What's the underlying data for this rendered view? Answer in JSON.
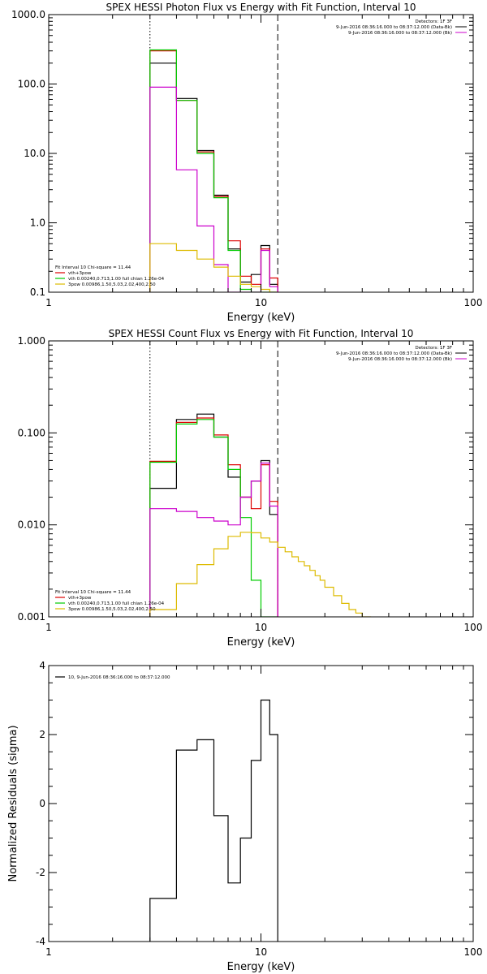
{
  "page": {
    "background": "#ffffff"
  },
  "chart_data": [
    {
      "type": "line",
      "title": "SPEX HESSI Photon Flux vs Energy with Fit Function, Interval 10",
      "xlabel": "Energy (keV)",
      "ylabel": "",
      "xscale": "log",
      "yscale": "log",
      "xlim": [
        1,
        100
      ],
      "ylim": [
        0.1,
        1000
      ],
      "xticks": [
        {
          "v": 1,
          "label": "1"
        },
        {
          "v": 10,
          "label": "10"
        },
        {
          "v": 100,
          "label": "100"
        }
      ],
      "yticks": [
        {
          "v": 0.1,
          "label": "0.1"
        },
        {
          "v": 1,
          "label": "1.0"
        },
        {
          "v": 10,
          "label": "10.0"
        },
        {
          "v": 100,
          "label": "100.0"
        },
        {
          "v": 1000,
          "label": "1000.0"
        }
      ],
      "vlines": [
        {
          "x": 3.0,
          "style": "dotted"
        },
        {
          "x": 12.0,
          "style": "dashed"
        }
      ],
      "header": [
        "Detectors: 1F 3F",
        "9-Jun-2016 08:36:16.000 to 08:37:12.000 (Data-Bk)",
        "9-Jun-2016 08:36:16.000 to 08:37:12.000 (Bk)"
      ],
      "header_colors": [
        "#000000",
        "#000000",
        "#cc00cc"
      ],
      "legend_lines": [
        "Fit Interval 10   Chi-square = 11.44",
        "vth+3pow",
        "vth 0.00240,0.713,1.00  full chian 1.26e-04",
        "3pow 0.00986,1.50,5.03,2.02,400,2.50"
      ],
      "legend_colors": [
        "",
        "#dd0000",
        "#00cc00",
        "#ddbb00"
      ],
      "series": [
        {
          "color": "#000000",
          "edges": [
            3.0,
            4.0,
            5.0,
            6.0,
            7.0,
            8.0,
            9.0,
            10.0,
            11.0,
            12.0
          ],
          "values": [
            200,
            62,
            11,
            2.5,
            0.42,
            0.14,
            0.18,
            0.47,
            0.13
          ]
        },
        {
          "color": "#dd0000",
          "edges": [
            3.0,
            4.0,
            5.0,
            6.0,
            7.0,
            8.0,
            9.0,
            10.0,
            11.0,
            12.0
          ],
          "values": [
            300,
            58,
            10.5,
            2.4,
            0.55,
            0.17,
            0.13,
            0.42,
            0.16
          ]
        },
        {
          "color": "#00cc00",
          "edges": [
            3.0,
            4.0,
            5.0,
            6.0,
            7.0,
            8.0,
            9.0,
            10.0,
            11.0,
            12.0
          ],
          "values": [
            310,
            58,
            10.0,
            2.3,
            0.4,
            0.11,
            0.1,
            0.1,
            0.1
          ]
        },
        {
          "color": "#cc00cc",
          "edges": [
            3.0,
            4.0,
            5.0,
            6.0,
            7.0,
            8.0,
            9.0,
            10.0,
            11.0,
            12.0
          ],
          "values": [
            90,
            5.8,
            0.9,
            0.25,
            0.1,
            0.1,
            0.1,
            0.4,
            0.12
          ]
        },
        {
          "color": "#ddbb00",
          "edges": [
            3.0,
            4.0,
            5.0,
            6.0,
            7.0,
            8.0,
            9.0,
            10.0,
            11.0,
            12.0
          ],
          "values": [
            0.5,
            0.4,
            0.3,
            0.23,
            0.17,
            0.13,
            0.12,
            0.11,
            0.1
          ]
        }
      ]
    },
    {
      "type": "line",
      "title": "SPEX HESSI Count Flux vs Energy with Fit Function, Interval 10",
      "xlabel": "Energy (keV)",
      "ylabel": "",
      "xscale": "log",
      "yscale": "log",
      "xlim": [
        1,
        100
      ],
      "ylim": [
        0.001,
        1
      ],
      "xticks": [
        {
          "v": 1,
          "label": "1"
        },
        {
          "v": 10,
          "label": "10"
        },
        {
          "v": 100,
          "label": "100"
        }
      ],
      "yticks": [
        {
          "v": 0.001,
          "label": "0.001"
        },
        {
          "v": 0.01,
          "label": "0.010"
        },
        {
          "v": 0.1,
          "label": "0.100"
        },
        {
          "v": 1,
          "label": "1.000"
        }
      ],
      "vlines": [
        {
          "x": 3.0,
          "style": "dotted"
        },
        {
          "x": 12.0,
          "style": "dashed"
        }
      ],
      "header": [
        "Detectors: 1F 3F",
        "9-Jun-2016 08:36:16.000 to 08:37:12.000 (Data-Bk)",
        "9-Jun-2016 08:36:16.000 to 08:37:12.000 (Bk)"
      ],
      "header_colors": [
        "#000000",
        "#000000",
        "#cc00cc"
      ],
      "legend_lines": [
        "Fit Interval 10   Chi-square = 11.44",
        "vth+3pow",
        "vth 0.00240,0.713,1.00  full chian 1.26e-04",
        "3pow 0.00986,1.50,5.03,2.02,400,2.50"
      ],
      "legend_colors": [
        "",
        "#dd0000",
        "#00cc00",
        "#ddbb00"
      ],
      "series": [
        {
          "color": "#000000",
          "edges": [
            3.0,
            4.0,
            5.0,
            6.0,
            7.0,
            8.0,
            9.0,
            10.0,
            11.0,
            12.0
          ],
          "values": [
            0.025,
            0.14,
            0.16,
            0.09,
            0.033,
            0.02,
            0.03,
            0.05,
            0.013
          ]
        },
        {
          "color": "#dd0000",
          "edges": [
            3.0,
            4.0,
            5.0,
            6.0,
            7.0,
            8.0,
            9.0,
            10.0,
            11.0,
            12.0
          ],
          "values": [
            0.049,
            0.13,
            0.145,
            0.095,
            0.045,
            0.02,
            0.015,
            0.045,
            0.018
          ]
        },
        {
          "color": "#00cc00",
          "edges": [
            3.0,
            4.0,
            5.0,
            6.0,
            7.0,
            8.0,
            9.0,
            10.0,
            11.0,
            12.0
          ],
          "values": [
            0.048,
            0.125,
            0.14,
            0.09,
            0.04,
            0.012,
            0.0025,
            0.001,
            0.001
          ]
        },
        {
          "color": "#cc00cc",
          "edges": [
            3.0,
            4.0,
            5.0,
            6.0,
            7.0,
            8.0,
            9.0,
            10.0,
            11.0,
            12.0
          ],
          "values": [
            0.015,
            0.014,
            0.012,
            0.011,
            0.01,
            0.02,
            0.03,
            0.047,
            0.016
          ]
        },
        {
          "color": "#ddbb00",
          "edges": [
            3,
            4,
            5,
            6,
            7,
            8,
            9,
            10,
            11,
            12,
            13,
            14,
            15,
            16,
            17,
            18,
            19,
            20,
            22,
            24,
            26,
            28,
            30,
            33
          ],
          "values": [
            0.0012,
            0.0023,
            0.0037,
            0.0055,
            0.0075,
            0.0083,
            0.0082,
            0.0072,
            0.0065,
            0.0057,
            0.0051,
            0.0045,
            0.004,
            0.0036,
            0.0032,
            0.0028,
            0.0025,
            0.0021,
            0.0017,
            0.0014,
            0.0012,
            0.0011,
            0.001
          ]
        }
      ]
    },
    {
      "type": "line",
      "title": "",
      "xlabel": "Energy (keV)",
      "ylabel": "Normalized Residuals (sigma)",
      "xscale": "log",
      "yscale": "linear",
      "xlim": [
        1,
        100
      ],
      "ylim": [
        -4,
        4
      ],
      "xticks": [
        {
          "v": 1,
          "label": "1"
        },
        {
          "v": 10,
          "label": "10"
        },
        {
          "v": 100,
          "label": "100"
        }
      ],
      "yticks": [
        {
          "v": -4,
          "label": "-4"
        },
        {
          "v": -2,
          "label": "-2"
        },
        {
          "v": 0,
          "label": "0"
        },
        {
          "v": 2,
          "label": "2"
        },
        {
          "v": 4,
          "label": "4"
        }
      ],
      "vlines": [],
      "header": [],
      "header_colors": [],
      "legend_lines": [
        "10,  9-Jun-2016 08:36:16.000 to 08:37:12.000"
      ],
      "legend_colors": [
        "#000000"
      ],
      "series": [
        {
          "color": "#000000",
          "edges": [
            3.0,
            4.0,
            5.0,
            6.0,
            7.0,
            8.0,
            9.0,
            10.0,
            11.0,
            12.0
          ],
          "values": [
            -2.75,
            1.55,
            1.85,
            -0.35,
            -2.3,
            -1.0,
            1.25,
            3.0,
            2.0
          ]
        }
      ]
    }
  ]
}
